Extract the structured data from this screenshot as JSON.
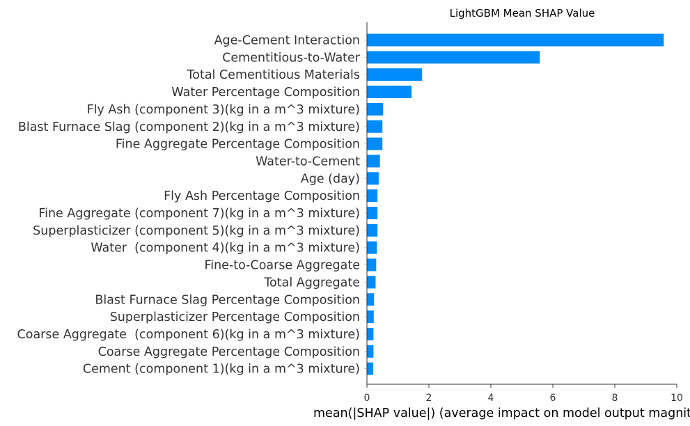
{
  "chart_data": {
    "type": "bar",
    "orientation": "horizontal",
    "title": "LightGBM Mean SHAP Value",
    "xlabel": "mean(|SHAP value|) (average impact on model output magnitude)",
    "ylabel": "",
    "xlim": [
      0,
      10
    ],
    "xticks": [
      "0",
      "2",
      "4",
      "6",
      "8",
      "10"
    ],
    "grid": false,
    "bar_color": "#008bfb",
    "categories": [
      "Age-Cement Interaction",
      "Cementitious-to-Water",
      "Total Cementitious Materials",
      "Water Percentage Composition",
      "Fly Ash (component 3)(kg in a m^3 mixture)",
      "Blast Furnace Slag (component 2)(kg in a m^3 mixture)",
      "Fine Aggregate Percentage Composition",
      "Water-to-Cement",
      "Age (day)",
      "Fly Ash Percentage Composition",
      "Fine Aggregate (component 7)(kg in a m^3 mixture)",
      "Superplasticizer (component 5)(kg in a m^3 mixture)",
      "Water  (component 4)(kg in a m^3 mixture)",
      "Fine-to-Coarse Aggregate",
      "Total Aggregate",
      "Blast Furnace Slag Percentage Composition",
      "Superplasticizer Percentage Composition",
      "Coarse Aggregate  (component 6)(kg in a m^3 mixture)",
      "Coarse Aggregate Percentage Composition",
      "Cement (component 1)(kg in a m^3 mixture)"
    ],
    "values": [
      9.58,
      5.58,
      1.78,
      1.44,
      0.52,
      0.5,
      0.5,
      0.42,
      0.38,
      0.34,
      0.34,
      0.34,
      0.32,
      0.3,
      0.28,
      0.23,
      0.22,
      0.21,
      0.21,
      0.2
    ]
  }
}
